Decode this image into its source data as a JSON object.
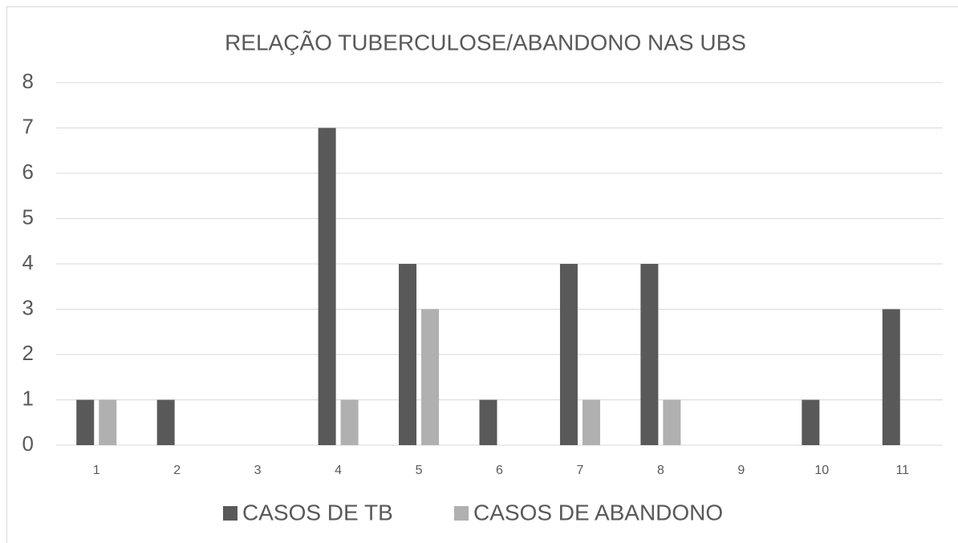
{
  "chart_data": {
    "type": "bar",
    "title": "RELAÇÃO TUBERCULOSE/ABANDONO NAS UBS",
    "categories": [
      "1",
      "2",
      "3",
      "4",
      "5",
      "6",
      "7",
      "8",
      "9",
      "10",
      "11"
    ],
    "series": [
      {
        "name": "CASOS DE TB",
        "color": "#595959",
        "values": [
          1,
          1,
          0,
          7,
          4,
          1,
          4,
          4,
          0,
          1,
          3
        ]
      },
      {
        "name": "CASOS DE ABANDONO",
        "color": "#b0b0b0",
        "values": [
          1,
          0,
          0,
          1,
          3,
          0,
          1,
          1,
          0,
          0,
          0
        ]
      }
    ],
    "ylim": [
      0,
      8
    ],
    "yticks": [
      0,
      1,
      2,
      3,
      4,
      5,
      6,
      7,
      8
    ],
    "grid": true,
    "legend": "bottom"
  }
}
